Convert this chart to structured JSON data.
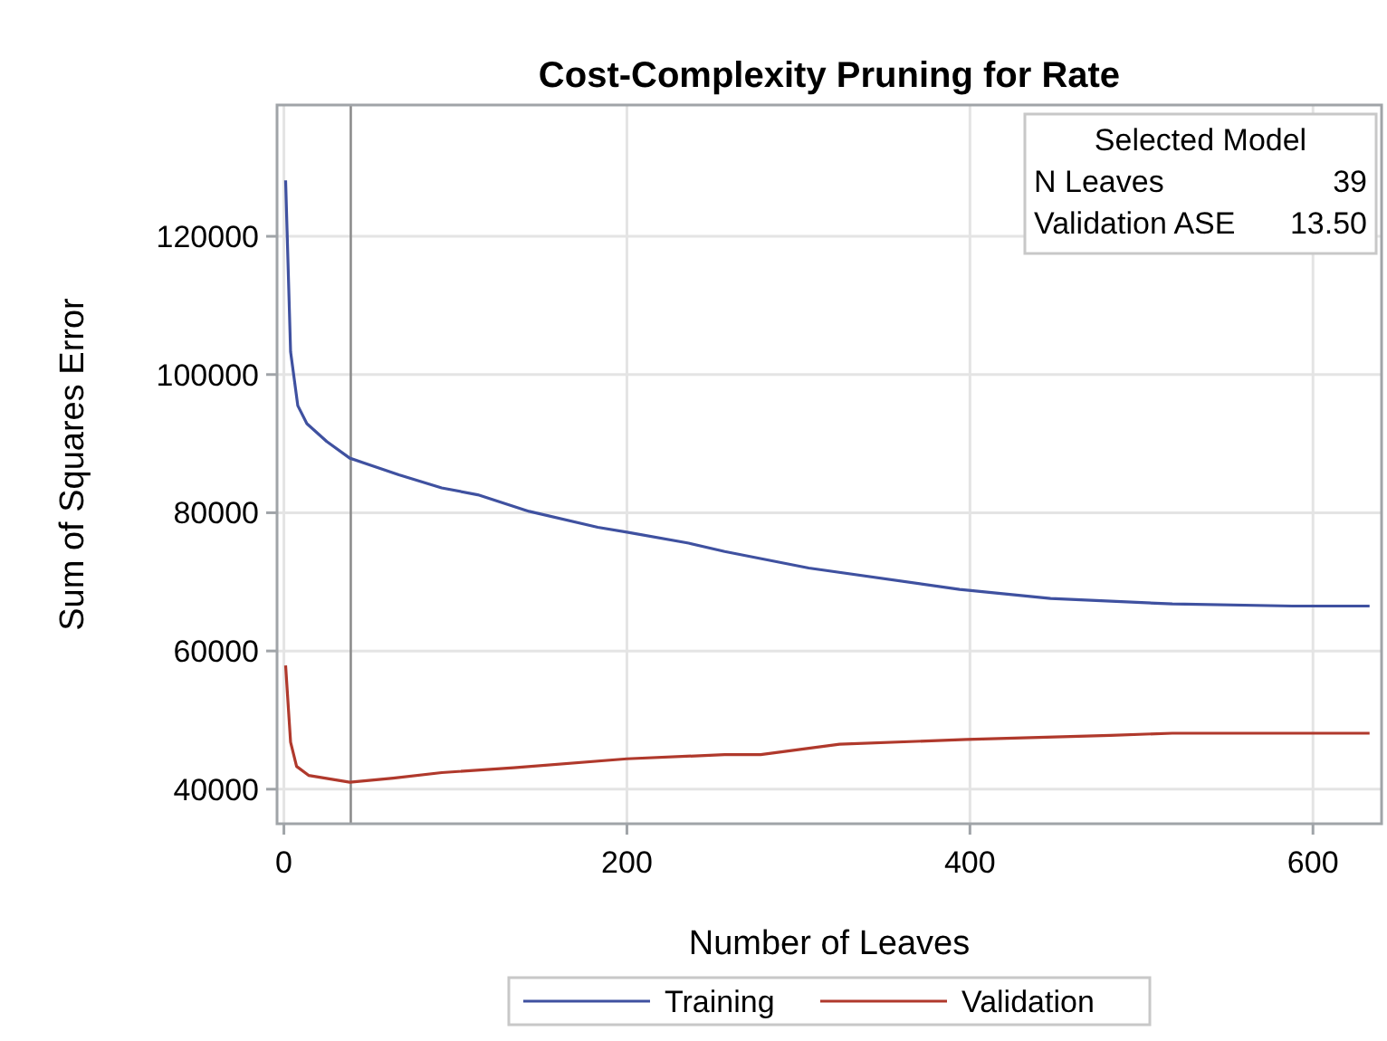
{
  "chart_data": {
    "type": "line",
    "title": "Cost-Complexity Pruning for Rate",
    "xlabel": "Number of Leaves",
    "ylabel": "Sum of Squares Error",
    "xlim": [
      -4,
      640
    ],
    "xticks": [
      0,
      200,
      400,
      600
    ],
    "ylim": [
      35000,
      139000
    ],
    "yticks": [
      40000,
      60000,
      80000,
      100000,
      120000
    ],
    "grid": true,
    "legend": "bottom",
    "ref_lines": [
      {
        "axis": "x",
        "value": 39,
        "color": "#8c8c8c"
      }
    ],
    "annotations": [
      "Selected Model",
      "N Leaves 39",
      "Validation ASE 13.50"
    ],
    "series": [
      {
        "name": "Training",
        "color": "#3f51a0",
        "x": [
          1,
          3.9,
          8.1,
          13.4,
          25,
          38.4,
          67,
          92,
          113,
          143,
          183,
          200,
          236,
          257,
          306,
          394,
          447,
          518,
          588,
          633
        ],
        "values": [
          128100,
          103300,
          95500,
          92900,
          90300,
          87900,
          85500,
          83600,
          82600,
          80200,
          77900,
          77200,
          75600,
          74400,
          72000,
          68900,
          67600,
          66800,
          66500,
          66500
        ]
      },
      {
        "name": "Validation",
        "color": "#b0392c",
        "x": [
          1,
          3.9,
          7.4,
          14.4,
          38.4,
          63.7,
          92,
          134,
          200,
          257,
          278,
          324,
          398,
          482,
          518,
          633
        ],
        "values": [
          57900,
          46800,
          43300,
          42000,
          41000,
          41600,
          42400,
          43100,
          44400,
          45000,
          45000,
          46500,
          47200,
          47800,
          48100,
          48100
        ]
      }
    ]
  }
}
